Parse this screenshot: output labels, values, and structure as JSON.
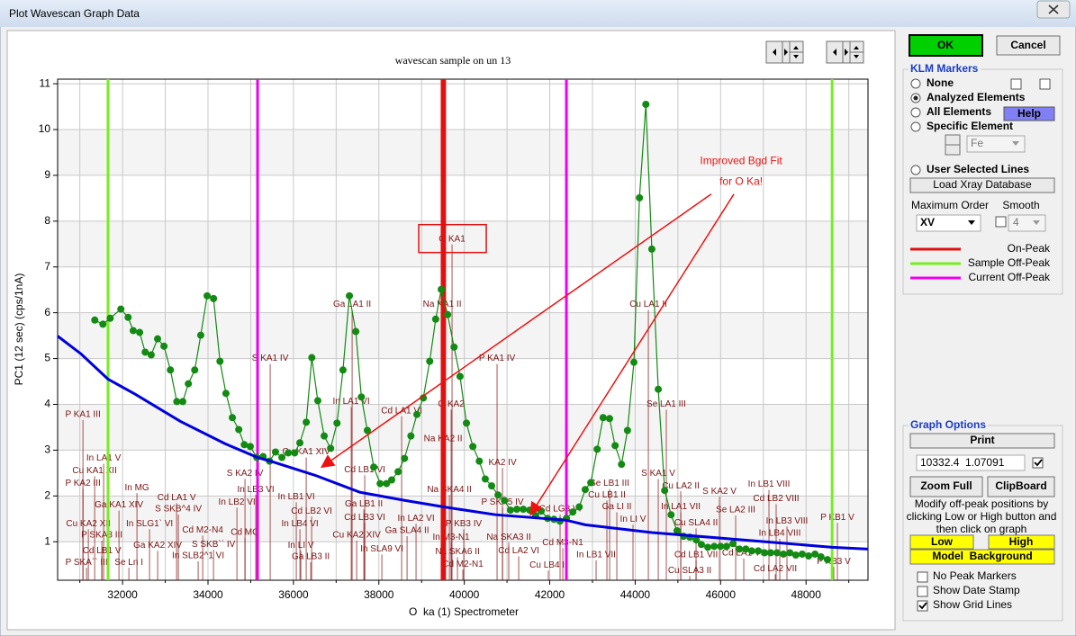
{
  "window": {
    "title": "Plot Wavescan Graph Data"
  },
  "chart_data": {
    "type": "line",
    "title": "wavescan sample on un 13",
    "x_label": "O  ka (1) Spectrometer",
    "y_label": "PC1 (12 sec) (cps/1nA)",
    "xlim": [
      30480,
      49450
    ],
    "ylim": [
      0.16,
      11.1
    ],
    "xticks": [
      32000,
      34000,
      36000,
      38000,
      40000,
      42000,
      44000,
      46000,
      48000
    ],
    "xminorticks": [
      31000,
      33000,
      35000,
      37000,
      39000,
      41000,
      43000,
      45000,
      47000,
      49000
    ],
    "yticks": [
      1,
      2,
      3,
      4,
      5,
      6,
      7,
      8,
      9,
      10,
      11
    ],
    "grid": true,
    "bands": true,
    "series": [
      {
        "color": "#138a13",
        "markers": true,
        "x": [
          31350,
          31540,
          31710,
          31960,
          32130,
          32250,
          32400,
          32530,
          32670,
          32820,
          32970,
          33120,
          33270,
          33410,
          33540,
          33690,
          33830,
          33980,
          34130,
          34280,
          34420,
          34570,
          34720,
          34850,
          34990,
          35140,
          35290,
          35440,
          35580,
          35730,
          35880,
          36030,
          36150,
          36300,
          36430,
          36570,
          36720,
          36870,
          37020,
          37160,
          37310,
          37460,
          37590,
          37730,
          37880,
          38030,
          38180,
          38300,
          38450,
          38600,
          38750,
          38890,
          39040,
          39190,
          39330,
          39460,
          39610,
          39760,
          39900,
          40050,
          40200,
          40350,
          40490,
          40640,
          40790,
          40940,
          41080,
          41230,
          41380,
          41530,
          41670,
          41800,
          41950,
          42100,
          42240,
          42390,
          42540,
          42690,
          42830,
          42960,
          43110,
          43250,
          43400,
          43530,
          43680,
          43820,
          43970,
          44100,
          44250,
          44390,
          44540,
          44690,
          44840,
          44980,
          45130,
          45280,
          45430,
          45550,
          45700,
          45850,
          46000,
          46140,
          46290,
          46440,
          46590,
          46730,
          46880,
          47030,
          47170,
          47320,
          47470,
          47620,
          47760,
          47910,
          48060,
          48210,
          48350,
          48500
        ],
        "values": [
          5.84,
          5.75,
          5.88,
          6.08,
          5.9,
          5.61,
          5.57,
          5.14,
          5.08,
          5.43,
          5.27,
          4.75,
          4.06,
          4.06,
          4.45,
          4.75,
          5.51,
          6.37,
          6.31,
          4.94,
          4.24,
          3.71,
          3.45,
          3.12,
          3.08,
          2.84,
          2.86,
          2.76,
          2.96,
          2.84,
          2.94,
          2.94,
          3.16,
          3.61,
          5.02,
          4.08,
          3.31,
          3.04,
          3.59,
          4.75,
          6.37,
          5.59,
          4.16,
          3.43,
          2.63,
          2.27,
          2.27,
          2.35,
          2.53,
          2.82,
          3.31,
          3.78,
          4.14,
          4.94,
          5.86,
          6.51,
          5.96,
          5.25,
          4.61,
          3.59,
          3.08,
          2.76,
          2.37,
          2.22,
          2.02,
          1.9,
          1.69,
          1.71,
          1.71,
          1.69,
          1.57,
          1.67,
          1.51,
          1.49,
          1.45,
          1.51,
          1.65,
          1.76,
          2.14,
          2.29,
          3.02,
          3.71,
          3.69,
          3.1,
          2.69,
          3.43,
          4.92,
          8.51,
          10.55,
          7.39,
          4.33,
          2.12,
          1.59,
          1.24,
          1.12,
          1.1,
          1.04,
          0.94,
          0.88,
          0.9,
          0.9,
          0.9,
          0.96,
          0.84,
          0.84,
          0.8,
          0.8,
          0.76,
          0.76,
          0.76,
          0.73,
          0.76,
          0.71,
          0.73,
          0.69,
          0.73,
          0.67,
          0.61
        ]
      },
      {
        "color": "#0000dd",
        "markers": false,
        "x": [
          30480,
          31030,
          31660,
          32300,
          33350,
          34400,
          35160,
          35460,
          36510,
          37560,
          38620,
          39520,
          40730,
          42390,
          42830,
          44390,
          44940,
          47050,
          48610,
          49450
        ],
        "values": [
          5.49,
          5.1,
          4.55,
          4.22,
          3.63,
          3.14,
          2.84,
          2.76,
          2.45,
          2.08,
          1.9,
          1.76,
          1.59,
          1.47,
          1.37,
          1.2,
          1.16,
          1.0,
          0.88,
          0.84
        ]
      }
    ],
    "markers": [
      {
        "name": "On-Peak",
        "color": "#e01010",
        "x": [
          39480,
          39540
        ]
      },
      {
        "name": "Sample Off-Peak",
        "color": "#77ee22",
        "x": [
          31660,
          48610
        ]
      },
      {
        "name": "Current Off-Peak",
        "color": "#ee00ee",
        "x": [
          35160,
          42390
        ]
      }
    ],
    "peak_labels": [
      {
        "text": "P KA1 III",
        "x": 31073,
        "y": 3.78
      },
      {
        "text": "In LA1 V",
        "x": 31557,
        "y": 2.82
      },
      {
        "text": "Cu KA1 XII",
        "x": 31347,
        "y": 2.55
      },
      {
        "text": "P KA2 III",
        "x": 31073,
        "y": 2.27
      },
      {
        "text": "In MG",
        "x": 32337,
        "y": 2.18
      },
      {
        "text": "Ga KA1 XIV",
        "x": 31916,
        "y": 1.8
      },
      {
        "text": "Cd LA1 V",
        "x": 33265,
        "y": 1.96
      },
      {
        "text": "S SKB^4 IV",
        "x": 33307,
        "y": 1.71
      },
      {
        "text": "In LB2 VI",
        "x": 34677,
        "y": 1.86
      },
      {
        "text": "In LB3 VI",
        "x": 35119,
        "y": 2.14
      },
      {
        "text": "S KA2 IV",
        "x": 34866,
        "y": 2.49
      },
      {
        "text": "S KA1 IV",
        "x": 35456,
        "y": 5.0
      },
      {
        "text": "Cu KA2 XII",
        "x": 31199,
        "y": 1.39
      },
      {
        "text": "In SLG1` VI",
        "x": 32632,
        "y": 1.39
      },
      {
        "text": "P SKA3 III",
        "x": 31515,
        "y": 1.14
      },
      {
        "text": "Cd M2-N4",
        "x": 33876,
        "y": 1.25
      },
      {
        "text": "Cd MG",
        "x": 34866,
        "y": 1.2
      },
      {
        "text": "Cd LB1 V",
        "x": 31515,
        "y": 0.8
      },
      {
        "text": "Ga KA2 XIV",
        "x": 32822,
        "y": 0.92
      },
      {
        "text": "S SKB`` IV",
        "x": 34129,
        "y": 0.94
      },
      {
        "text": "P SKA`` III",
        "x": 31157,
        "y": 0.55
      },
      {
        "text": "Se Ln I",
        "x": 32148,
        "y": 0.55
      },
      {
        "text": "In SLB2^1 VI",
        "x": 33770,
        "y": 0.69
      },
      {
        "text": "In LB1 VI",
        "x": 36067,
        "y": 1.98
      },
      {
        "text": "Cd LB2 VI",
        "x": 36426,
        "y": 1.67
      },
      {
        "text": "In LB4 VI",
        "x": 36152,
        "y": 1.39
      },
      {
        "text": "In LI V",
        "x": 36173,
        "y": 0.92
      },
      {
        "text": "Cu KA1 XIV",
        "x": 36299,
        "y": 2.96
      },
      {
        "text": "Ga LA1 II",
        "x": 37374,
        "y": 6.18
      },
      {
        "text": "In LA1 VI",
        "x": 37353,
        "y": 4.06
      },
      {
        "text": "Cd LB1 VI",
        "x": 37669,
        "y": 2.57
      },
      {
        "text": "Ga LB1 II",
        "x": 37648,
        "y": 1.82
      },
      {
        "text": "Cd LB3 VI",
        "x": 37669,
        "y": 1.53
      },
      {
        "text": "Cu KA2 XIV",
        "x": 37480,
        "y": 1.14
      },
      {
        "text": "Ga LB3 II",
        "x": 36405,
        "y": 0.67
      },
      {
        "text": "In SLA9 VI",
        "x": 38070,
        "y": 0.84
      },
      {
        "text": "Cd LA1 VI",
        "x": 38533,
        "y": 3.86
      },
      {
        "text": "In LA2 VI",
        "x": 38870,
        "y": 1.51
      },
      {
        "text": "Ga SLA4 II",
        "x": 38660,
        "y": 1.24
      },
      {
        "text": "O KA1",
        "x": 39713,
        "y": 7.61,
        "boxed": true
      },
      {
        "text": "Na KA1 II",
        "x": 39482,
        "y": 6.18
      },
      {
        "text": "O KA2",
        "x": 39692,
        "y": 4.0
      },
      {
        "text": "Na KA2 II",
        "x": 39503,
        "y": 3.25
      },
      {
        "text": "Na SKA4 II",
        "x": 39650,
        "y": 2.14
      },
      {
        "text": "P KB3 IV",
        "x": 39987,
        "y": 1.39
      },
      {
        "text": "In M3-N1",
        "x": 39692,
        "y": 1.1
      },
      {
        "text": "Na SKA6 II",
        "x": 39840,
        "y": 0.78
      },
      {
        "text": "Cd M2-N1",
        "x": 39966,
        "y": 0.51
      },
      {
        "text": "P KA1 IV",
        "x": 40767,
        "y": 5.0
      },
      {
        "text": "KA2 IV",
        "x": 40894,
        "y": 2.73
      },
      {
        "text": "P SKA5 IV",
        "x": 40894,
        "y": 1.86
      },
      {
        "text": "Na SKA3 II",
        "x": 41041,
        "y": 1.1
      },
      {
        "text": "Cd LA2 VI",
        "x": 41273,
        "y": 0.8
      },
      {
        "text": "Cd LG3 VI",
        "x": 42242,
        "y": 1.71
      },
      {
        "text": "Cd M3-N1",
        "x": 42306,
        "y": 0.98
      },
      {
        "text": "Cu LB4 II",
        "x": 41968,
        "y": 0.49
      },
      {
        "text": "In LB1 VII",
        "x": 43085,
        "y": 0.71
      },
      {
        "text": "Se LB1 III",
        "x": 43402,
        "y": 2.27
      },
      {
        "text": "Cu LB1 II",
        "x": 43338,
        "y": 2.02
      },
      {
        "text": "Ga LI II",
        "x": 43570,
        "y": 1.76
      },
      {
        "text": "In LI V",
        "x": 43949,
        "y": 1.49
      },
      {
        "text": "Cu LA1 II",
        "x": 44308,
        "y": 6.18
      },
      {
        "text": "Se LA1 III",
        "x": 44729,
        "y": 4.0
      },
      {
        "text": "S KA1 V",
        "x": 44540,
        "y": 2.49
      },
      {
        "text": "Cu LA2 II",
        "x": 45067,
        "y": 2.22
      },
      {
        "text": "In LA1 VII",
        "x": 45067,
        "y": 1.76
      },
      {
        "text": "Cu SLA4 II",
        "x": 45425,
        "y": 1.41
      },
      {
        "text": "S KA2 V",
        "x": 45973,
        "y": 2.1
      },
      {
        "text": "Se LA2 III",
        "x": 46352,
        "y": 1.69
      },
      {
        "text": "Cd LB1 VII",
        "x": 45425,
        "y": 0.71
      },
      {
        "text": "Cu SLA3 II",
        "x": 45277,
        "y": 0.37
      },
      {
        "text": "Cd LA1 VII",
        "x": 46542,
        "y": 0.75
      },
      {
        "text": "Cd LA2 VII",
        "x": 47279,
        "y": 0.41
      },
      {
        "text": "In LB1 VIII",
        "x": 47132,
        "y": 2.25
      },
      {
        "text": "Cd LB2 VIII",
        "x": 47300,
        "y": 1.94
      },
      {
        "text": "In LB3 VIII",
        "x": 47553,
        "y": 1.45
      },
      {
        "text": "In LB4 VIII",
        "x": 47385,
        "y": 1.18
      },
      {
        "text": "P KB1 V",
        "x": 48734,
        "y": 1.53
      },
      {
        "text": "P KB3 V",
        "x": 48649,
        "y": 0.57
      }
    ],
    "annotation": {
      "lines": [
        "Improved Bgd Fit",
        "for O Ka!"
      ],
      "x": 46480,
      "y": 9.31,
      "color": "#ee1111",
      "arrows": [
        {
          "from": [
            45780,
            8.59
          ],
          "to": [
            36660,
            2.63
          ]
        },
        {
          "from": [
            46310,
            8.59
          ],
          "to": [
            41550,
            1.59
          ]
        }
      ]
    }
  },
  "panel": {
    "ok": "OK",
    "cancel": "Cancel",
    "klm": {
      "title": "KLM Markers",
      "options": [
        "None",
        "Analyzed Elements",
        "All Elements",
        "Specific Element"
      ],
      "selected": 1,
      "help": "Help",
      "element": "Fe",
      "user_lines": "User Selected Lines",
      "load_db": "Load Xray Database",
      "max_order_label": "Maximum Order",
      "smooth_label": "Smooth",
      "max_order": "XV",
      "smooth": "4"
    },
    "graph_options": {
      "title": "Graph Options",
      "print": "Print",
      "readout": "10332.4  1.07091",
      "readout_checked": true,
      "zoom": "Zoom Full",
      "clipboard": "ClipBoard",
      "hint": [
        "Modify off-peak positions by",
        "clicking Low or High button and",
        "then click on graph"
      ],
      "low": "Low",
      "high": "High",
      "model": "Model  Background",
      "checks": [
        {
          "label": "No Peak Markers",
          "checked": false
        },
        {
          "label": "Show Date Stamp",
          "checked": false
        },
        {
          "label": "Show Grid Lines",
          "checked": true
        }
      ]
    }
  }
}
